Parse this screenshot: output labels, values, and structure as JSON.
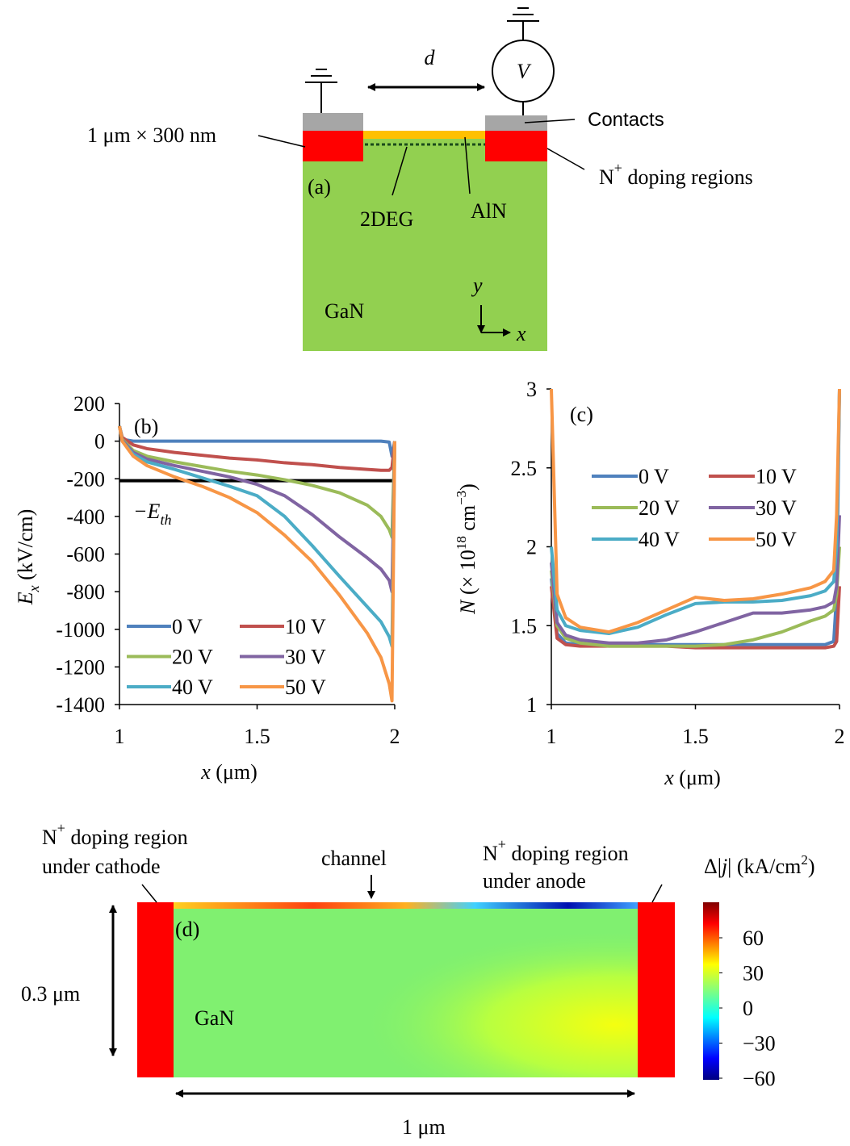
{
  "panel_a": {
    "gap_label": "d",
    "source_label": "V",
    "size_label": "1 μm × 300 nm",
    "contacts_label": "Contacts",
    "doping_label": [
      "N",
      "+",
      " doping regions"
    ],
    "panel_tag": "(a)",
    "twodeg_label": "2DEG",
    "barrier_label": "AlN",
    "substrate_label": "GaN",
    "axis_y": "y",
    "axis_x": "x"
  },
  "chart_data": [
    {
      "type": "line",
      "panel_tag": "(b)",
      "xlabel": [
        "x",
        " (μm)"
      ],
      "ylabel": [
        "E",
        "x",
        " (kV/cm)"
      ],
      "xlim": [
        1,
        2
      ],
      "ylim": [
        -1400,
        200
      ],
      "xticks": [
        1,
        1.5,
        2
      ],
      "yticks": [
        200,
        0,
        -200,
        -400,
        -600,
        -800,
        -1000,
        -1200,
        -1400
      ],
      "threshold": {
        "value": -210,
        "label": [
          "−E",
          "th"
        ],
        "color": "#000000"
      },
      "x": [
        1,
        1.01,
        1.05,
        1.1,
        1.2,
        1.3,
        1.4,
        1.5,
        1.6,
        1.7,
        1.8,
        1.9,
        1.95,
        1.98,
        1.99,
        2.0
      ],
      "series": [
        {
          "name": "0 V",
          "color": "#4f81bd",
          "values": [
            80,
            10,
            0,
            0,
            0,
            0,
            0,
            0,
            0,
            0,
            0,
            0,
            0,
            -5,
            -80,
            0
          ]
        },
        {
          "name": "10 V",
          "color": "#c0504d",
          "values": [
            80,
            20,
            -20,
            -40,
            -60,
            -75,
            -90,
            -100,
            -115,
            -125,
            -140,
            -150,
            -155,
            -155,
            -140,
            0
          ]
        },
        {
          "name": "20 V",
          "color": "#9bbb59",
          "values": [
            80,
            10,
            -50,
            -80,
            -110,
            -135,
            -160,
            -180,
            -205,
            -235,
            -275,
            -340,
            -400,
            -470,
            -510,
            0
          ]
        },
        {
          "name": "30 V",
          "color": "#8064a2",
          "values": [
            80,
            5,
            -60,
            -95,
            -130,
            -160,
            -190,
            -230,
            -290,
            -390,
            -510,
            -620,
            -680,
            -740,
            -800,
            0
          ]
        },
        {
          "name": "40 V",
          "color": "#4bacc6",
          "values": [
            80,
            0,
            -70,
            -110,
            -150,
            -195,
            -240,
            -290,
            -400,
            -555,
            -720,
            -880,
            -960,
            -1040,
            -1090,
            0
          ]
        },
        {
          "name": "50 V",
          "color": "#f79646",
          "values": [
            80,
            0,
            -80,
            -130,
            -190,
            -240,
            -300,
            -380,
            -500,
            -640,
            -820,
            -1020,
            -1150,
            -1290,
            -1380,
            0
          ]
        }
      ]
    },
    {
      "type": "line",
      "panel_tag": "(c)",
      "xlabel": [
        "x",
        " (μm)"
      ],
      "ylabel": [
        "N",
        " (× 10",
        "18",
        " cm",
        "−3",
        ")"
      ],
      "xlim": [
        1,
        2
      ],
      "ylim": [
        1,
        3
      ],
      "xticks": [
        1,
        1.5,
        2
      ],
      "yticks": [
        1,
        1.5,
        2,
        2.5,
        3
      ],
      "x": [
        1,
        1.02,
        1.05,
        1.1,
        1.2,
        1.3,
        1.4,
        1.5,
        1.6,
        1.7,
        1.8,
        1.9,
        1.95,
        1.98,
        1.99,
        2.0
      ],
      "series": [
        {
          "name": "0 V",
          "color": "#4f81bd",
          "values": [
            1.8,
            1.45,
            1.39,
            1.38,
            1.38,
            1.38,
            1.38,
            1.38,
            1.38,
            1.38,
            1.38,
            1.38,
            1.38,
            1.4,
            1.7,
            3
          ]
        },
        {
          "name": "10 V",
          "color": "#c0504d",
          "values": [
            1.75,
            1.42,
            1.38,
            1.37,
            1.37,
            1.37,
            1.37,
            1.36,
            1.36,
            1.36,
            1.36,
            1.36,
            1.36,
            1.37,
            1.4,
            1.75
          ]
        },
        {
          "name": "20 V",
          "color": "#9bbb59",
          "values": [
            1.85,
            1.5,
            1.42,
            1.39,
            1.37,
            1.37,
            1.37,
            1.37,
            1.38,
            1.41,
            1.46,
            1.53,
            1.56,
            1.6,
            1.7,
            2.0
          ]
        },
        {
          "name": "30 V",
          "color": "#8064a2",
          "values": [
            1.9,
            1.52,
            1.44,
            1.41,
            1.39,
            1.39,
            1.41,
            1.46,
            1.52,
            1.58,
            1.58,
            1.6,
            1.62,
            1.65,
            1.75,
            2.2
          ]
        },
        {
          "name": "40 V",
          "color": "#4bacc6",
          "values": [
            2.0,
            1.6,
            1.5,
            1.47,
            1.45,
            1.49,
            1.57,
            1.64,
            1.65,
            1.65,
            1.66,
            1.69,
            1.72,
            1.78,
            2.0,
            3
          ]
        },
        {
          "name": "50 V",
          "color": "#f79646",
          "values": [
            3,
            1.7,
            1.55,
            1.49,
            1.46,
            1.52,
            1.6,
            1.68,
            1.66,
            1.67,
            1.7,
            1.74,
            1.78,
            1.85,
            2.2,
            3
          ]
        }
      ]
    }
  ],
  "panel_d": {
    "cathode_label": [
      "N",
      "+",
      " doping region",
      "under cathode"
    ],
    "channel_label": "channel",
    "anode_label": [
      "N",
      "+",
      " doping region",
      "under anode"
    ],
    "colorbar_title": [
      "Δ|",
      "j",
      "| (kA/cm",
      "2",
      ")"
    ],
    "clim": [
      -60,
      60
    ],
    "colorbar_ticks": [
      60,
      30,
      0,
      {
        "value": -30,
        "label": "−30"
      },
      {
        "value": -60,
        "label": "−60"
      }
    ],
    "panel_tag": "(d)",
    "substrate_label": "GaN",
    "height_label": "0.3 μm",
    "width_label": "1 μm"
  }
}
